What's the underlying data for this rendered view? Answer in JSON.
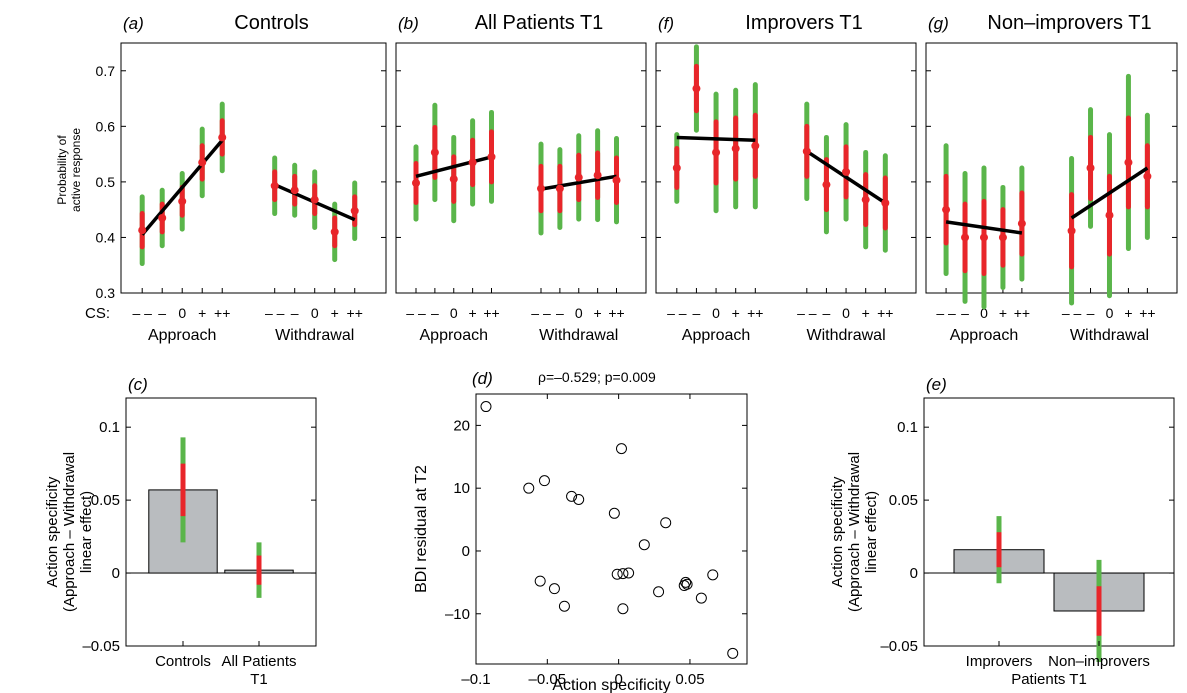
{
  "colors": {
    "sd2": "#5ab54a",
    "sd1": "#e8262a",
    "mean": "#e8262a",
    "line": "#000000",
    "bar": "#b9bcbf",
    "axis": "#000000"
  },
  "top_ylabel": [
    "Probability of",
    "active response"
  ],
  "cs_label": "CS:",
  "cs_ticks": [
    "– –",
    "–",
    "0",
    "+",
    "++"
  ],
  "group_labels": [
    "Approach",
    "Withdrawal"
  ],
  "chart_data": [
    {
      "id": "a",
      "panel_letter": "(a)",
      "title": "Controls",
      "type": "line",
      "ylim": [
        0.3,
        0.75
      ],
      "yticks": [
        "0.3",
        "0.4",
        "0.5",
        "0.6",
        "0.7"
      ],
      "series": [
        {
          "group": "Approach",
          "means": [
            0.413,
            0.435,
            0.465,
            0.535,
            0.58
          ],
          "sd1": [
            0.03,
            0.025,
            0.025,
            0.03,
            0.03
          ],
          "sd2": [
            0.06,
            0.05,
            0.05,
            0.06,
            0.06
          ],
          "fit": [
            0.405,
            0.575
          ]
        },
        {
          "group": "Withdrawal",
          "means": [
            0.493,
            0.485,
            0.468,
            0.41,
            0.448
          ],
          "sd1": [
            0.025,
            0.025,
            0.025,
            0.025,
            0.025
          ],
          "sd2": [
            0.05,
            0.045,
            0.05,
            0.05,
            0.05
          ],
          "fit": [
            0.495,
            0.432
          ]
        }
      ]
    },
    {
      "id": "b",
      "panel_letter": "(b)",
      "title": "All Patients T1",
      "type": "line",
      "ylim": [
        0.3,
        0.75
      ],
      "series": [
        {
          "group": "Approach",
          "means": [
            0.498,
            0.553,
            0.505,
            0.535,
            0.545
          ],
          "sd1": [
            0.035,
            0.045,
            0.04,
            0.04,
            0.045
          ],
          "sd2": [
            0.065,
            0.085,
            0.075,
            0.075,
            0.08
          ],
          "fit": [
            0.51,
            0.545
          ]
        },
        {
          "group": "Withdrawal",
          "means": [
            0.488,
            0.488,
            0.508,
            0.512,
            0.503
          ],
          "sd1": [
            0.04,
            0.04,
            0.04,
            0.04,
            0.04
          ],
          "sd2": [
            0.08,
            0.07,
            0.075,
            0.08,
            0.075
          ],
          "fit": [
            0.487,
            0.51
          ]
        }
      ]
    },
    {
      "id": "f",
      "panel_letter": "(f)",
      "title": "Improvers T1",
      "type": "line",
      "ylim": [
        0.3,
        0.75
      ],
      "series": [
        {
          "group": "Approach",
          "means": [
            0.525,
            0.668,
            0.553,
            0.56,
            0.565
          ],
          "sd1": [
            0.035,
            0.04,
            0.055,
            0.055,
            0.055
          ],
          "sd2": [
            0.06,
            0.075,
            0.105,
            0.105,
            0.11
          ],
          "fit": [
            0.58,
            0.575
          ]
        },
        {
          "group": "Withdrawal",
          "means": [
            0.555,
            0.495,
            0.518,
            0.468,
            0.462
          ],
          "sd1": [
            0.045,
            0.045,
            0.045,
            0.045,
            0.045
          ],
          "sd2": [
            0.085,
            0.085,
            0.085,
            0.085,
            0.085
          ],
          "fit": [
            0.555,
            0.462
          ]
        }
      ]
    },
    {
      "id": "g",
      "panel_letter": "(g)",
      "title": "Non–improvers T1",
      "type": "line",
      "ylim": [
        0.3,
        0.75
      ],
      "series": [
        {
          "group": "Approach",
          "means": [
            0.45,
            0.4,
            0.4,
            0.4,
            0.425
          ],
          "sd1": [
            0.06,
            0.06,
            0.065,
            0.05,
            0.055
          ],
          "sd2": [
            0.115,
            0.115,
            0.125,
            0.09,
            0.1
          ],
          "fit": [
            0.428,
            0.408
          ]
        },
        {
          "group": "Withdrawal",
          "means": [
            0.412,
            0.525,
            0.44,
            0.535,
            0.51
          ],
          "sd1": [
            0.065,
            0.055,
            0.07,
            0.08,
            0.055
          ],
          "sd2": [
            0.13,
            0.105,
            0.145,
            0.155,
            0.11
          ],
          "fit": [
            0.435,
            0.525
          ]
        }
      ]
    },
    {
      "id": "c",
      "panel_letter": "(c)",
      "type": "bar",
      "ylabel": [
        "Action specificity",
        "(Approach – Withdrawal",
        "linear effect)"
      ],
      "ylim": [
        -0.05,
        0.12
      ],
      "yticks": [
        "–0.05",
        "0",
        "0.05",
        "0.1"
      ],
      "categories": [
        [
          "Controls"
        ],
        [
          "All Patients",
          "T1"
        ]
      ],
      "values": [
        0.057,
        0.002
      ],
      "sd1": [
        0.018,
        0.01
      ],
      "sd2": [
        0.036,
        0.019
      ]
    },
    {
      "id": "d",
      "panel_letter": "(d)",
      "type": "scatter",
      "annotation": "ρ=–0.529; p=0.009",
      "xlabel": "Action specificity",
      "ylabel": "BDI residual at T2",
      "xlim": [
        -0.1,
        0.09
      ],
      "ylim": [
        -18,
        25
      ],
      "xticks": [
        "–0.1",
        "–0.05",
        "0",
        "0.05"
      ],
      "yticks": [
        "–10",
        "0",
        "10",
        "20"
      ],
      "points": [
        [
          -0.093,
          23
        ],
        [
          -0.063,
          10
        ],
        [
          -0.052,
          11.2
        ],
        [
          -0.033,
          8.7
        ],
        [
          -0.028,
          8.2
        ],
        [
          -0.003,
          6
        ],
        [
          0.002,
          16.3
        ],
        [
          0.018,
          1
        ],
        [
          0.033,
          4.5
        ],
        [
          -0.055,
          -4.8
        ],
        [
          -0.045,
          -6
        ],
        [
          -0.038,
          -8.8
        ],
        [
          -0.001,
          -3.7
        ],
        [
          0.003,
          -3.6
        ],
        [
          0.007,
          -3.5
        ],
        [
          0.003,
          -9.2
        ],
        [
          0.028,
          -6.5
        ],
        [
          0.046,
          -5.5
        ],
        [
          0.047,
          -5
        ],
        [
          0.048,
          -5.3
        ],
        [
          0.058,
          -7.5
        ],
        [
          0.066,
          -3.8
        ],
        [
          0.08,
          -16.3
        ]
      ]
    },
    {
      "id": "e",
      "panel_letter": "(e)",
      "type": "bar",
      "ylabel": [
        "Action specificity",
        "(Approach – Withdrawal",
        "linear effect)"
      ],
      "ylim": [
        -0.05,
        0.12
      ],
      "yticks": [
        "–0.05",
        "0",
        "0.05",
        "0.1"
      ],
      "categories": [
        [
          "Improvers"
        ],
        [
          "Non–improvers"
        ]
      ],
      "group_label": "Patients T1",
      "values": [
        0.016,
        -0.026
      ],
      "sd1": [
        0.012,
        0.017
      ],
      "sd2": [
        0.023,
        0.035
      ]
    }
  ]
}
